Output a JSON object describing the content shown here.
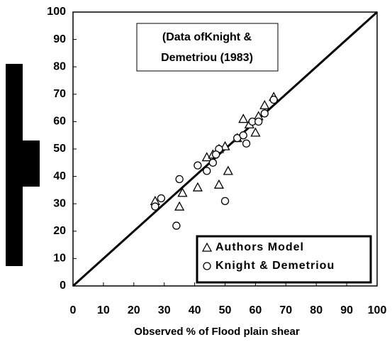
{
  "chart_data": {
    "type": "scatter",
    "annotation": [
      "(Data ofKnight &",
      "Demetriou (1983)"
    ],
    "xlabel": "Observed % of Flood plain shear",
    "xlim": [
      0,
      100
    ],
    "ylim": [
      0,
      100
    ],
    "xticks": [
      0,
      10,
      20,
      30,
      40,
      50,
      60,
      70,
      80,
      90,
      100
    ],
    "yticks": [
      0,
      10,
      20,
      30,
      40,
      50,
      60,
      70,
      80,
      90,
      100
    ],
    "reference_line": {
      "x": [
        0,
        100
      ],
      "y": [
        0,
        100
      ]
    },
    "legend": "lower right",
    "grid": false,
    "series": [
      {
        "name": "Authors Model",
        "color": "#000000",
        "marker": "triangle",
        "x": [
          27,
          35,
          36,
          41,
          44,
          46,
          48,
          50,
          51,
          54,
          56,
          58,
          60,
          61,
          63,
          66,
          48
        ],
        "values": [
          31,
          29,
          34,
          36,
          47,
          48,
          37,
          51,
          42,
          54,
          61,
          59,
          56,
          62,
          66,
          69,
          50
        ]
      },
      {
        "name": "Knight & Demetriou",
        "color": "#000000",
        "marker": "circle",
        "x": [
          27,
          29,
          34,
          35,
          41,
          44,
          46,
          48,
          50,
          54,
          56,
          57,
          59,
          61,
          63,
          66,
          47
        ],
        "values": [
          29,
          32,
          22,
          39,
          44,
          42,
          45,
          50,
          31,
          54,
          55,
          52,
          60,
          60,
          63,
          68,
          48
        ]
      }
    ]
  }
}
